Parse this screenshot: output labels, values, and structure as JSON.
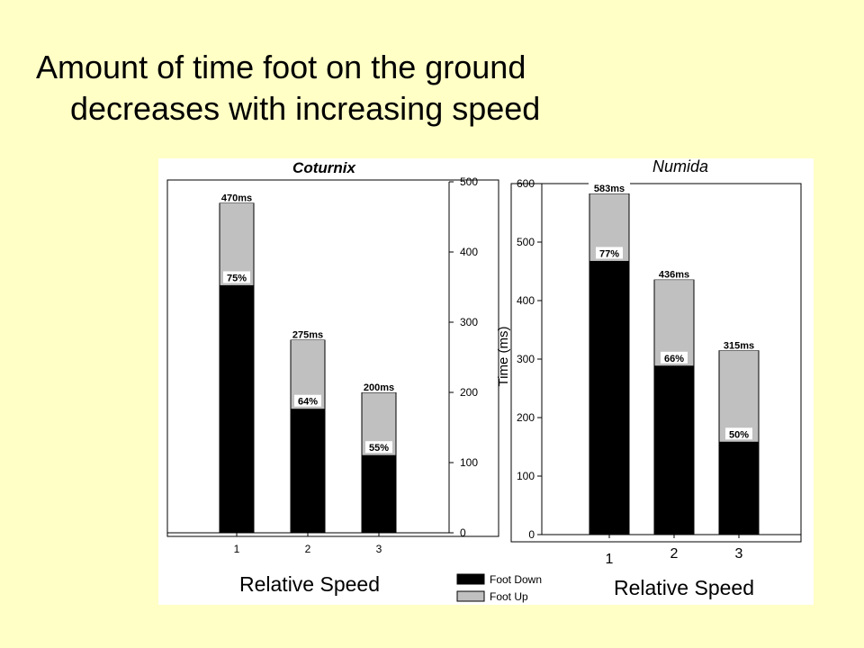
{
  "slide": {
    "title_line1": "Amount of time foot on the ground",
    "title_line2": "decreases with increasing speed"
  },
  "colors": {
    "background": "#ffffc6",
    "foot_down": "#000000",
    "foot_up": "#c0c0c0",
    "panel": "#ffffff"
  },
  "legend": {
    "items": [
      {
        "label": "Foot Down",
        "color": "#000000"
      },
      {
        "label": "Foot Up",
        "color": "#c0c0c0"
      }
    ]
  },
  "chart_data": [
    {
      "type": "bar",
      "stacked": true,
      "title": "Coturnix",
      "xlabel": "Relative Speed",
      "ylabel": "",
      "y_axis_side": "right",
      "ylim": [
        0,
        500
      ],
      "yticks": [
        0,
        100,
        200,
        300,
        400,
        500
      ],
      "categories": [
        "1",
        "2",
        "3"
      ],
      "series": [
        {
          "name": "Foot Down",
          "values": [
            352,
            176,
            110
          ]
        },
        {
          "name": "Foot Up",
          "values": [
            118,
            99,
            90
          ]
        }
      ],
      "totals": [
        470,
        275,
        200
      ],
      "total_labels": [
        "470ms",
        "275ms",
        "200ms"
      ],
      "percent_labels": [
        "75%",
        "64%",
        "55%"
      ],
      "grid": false
    },
    {
      "type": "bar",
      "stacked": true,
      "title": "Numida",
      "xlabel": "Relative Speed",
      "ylabel": "Time (ms)",
      "y_axis_side": "left",
      "ylim": [
        0,
        600
      ],
      "yticks": [
        0,
        100,
        200,
        300,
        400,
        500,
        600
      ],
      "categories": [
        "1",
        "2",
        "3"
      ],
      "series": [
        {
          "name": "Foot Down",
          "values": [
            467,
            288,
            158
          ]
        },
        {
          "name": "Foot Up",
          "values": [
            116,
            148,
            157
          ]
        }
      ],
      "totals": [
        583,
        436,
        315
      ],
      "total_labels": [
        "583ms",
        "436ms",
        "315ms"
      ],
      "percent_labels": [
        "77%",
        "66%",
        "50%"
      ],
      "grid": false
    }
  ]
}
